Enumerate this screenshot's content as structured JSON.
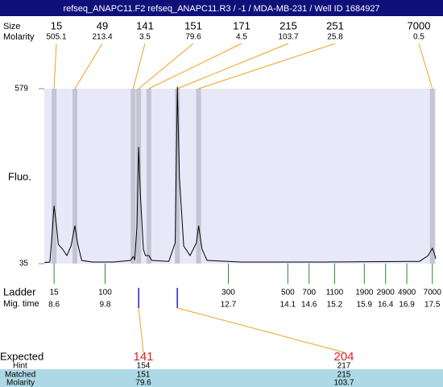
{
  "title": "refseq_ANAPC11.F2  refseq_ANAPC11.R3 / -1 / MDA-MB-231 / Well ID 1684927",
  "chart_data": {
    "type": "electropherogram",
    "ylabel": "Fluo.",
    "ylim": [
      35,
      579
    ],
    "yticks": [
      35,
      579
    ],
    "xlim": [
      8.37,
      17.58
    ],
    "trace": {
      "color": "#000000",
      "x": [
        8.37,
        8.5,
        8.55,
        8.6,
        8.65,
        8.7,
        8.8,
        8.9,
        9.0,
        9.09,
        9.15,
        9.25,
        9.5,
        10.0,
        10.4,
        10.46,
        10.5,
        10.55,
        10.59,
        10.63,
        10.7,
        10.75,
        10.83,
        10.9,
        11.3,
        11.45,
        11.5,
        11.55,
        11.65,
        11.8,
        11.95,
        12.0,
        12.08,
        12.2,
        13.0,
        15.0,
        17.2,
        17.4,
        17.5,
        17.55,
        17.58
      ],
      "values": [
        38,
        40,
        120,
        215,
        160,
        95,
        80,
        60,
        90,
        153,
        100,
        45,
        40,
        40,
        45,
        57,
        48,
        150,
        398,
        250,
        80,
        60,
        60,
        45,
        42,
        100,
        585,
        300,
        90,
        60,
        100,
        153,
        80,
        45,
        40,
        40,
        42,
        60,
        83,
        65,
        50
      ]
    },
    "peaks": {
      "label_size": "Size",
      "label_molarity": "Molarity",
      "color": "#f0a020",
      "band_color": "#c4c4d2",
      "sizes": [
        15,
        49,
        141,
        151,
        171,
        215,
        251,
        7000
      ],
      "molarity": [
        505.1,
        213.4,
        3.5,
        79.6,
        4.5,
        103.7,
        25.8,
        0.5
      ],
      "x": [
        8.6,
        9.09,
        10.46,
        10.59,
        10.83,
        11.5,
        12.0,
        17.5
      ]
    },
    "ladder": {
      "label": "Ladder",
      "label_time": "Mig. time",
      "color": "#2a8a2a",
      "sizes": [
        15,
        100,
        300,
        500,
        700,
        1100,
        1900,
        2900,
        4900,
        7000
      ],
      "x": [
        8.6,
        9.8,
        12.7,
        14.1,
        14.6,
        15.2,
        15.9,
        16.4,
        16.9,
        17.5
      ]
    },
    "expected": {
      "label": "Expected",
      "label_hint": "Hint",
      "label_matched": "Matched",
      "label_molarity": "Molarity",
      "values": [
        141,
        204
      ],
      "hint": [
        154,
        217
      ],
      "matched": [
        151,
        215
      ],
      "molarity": [
        79.6,
        103.7
      ],
      "matched_x": [
        10.59,
        11.5
      ],
      "color": "#e02020",
      "marker_color": "#2020c0"
    }
  }
}
